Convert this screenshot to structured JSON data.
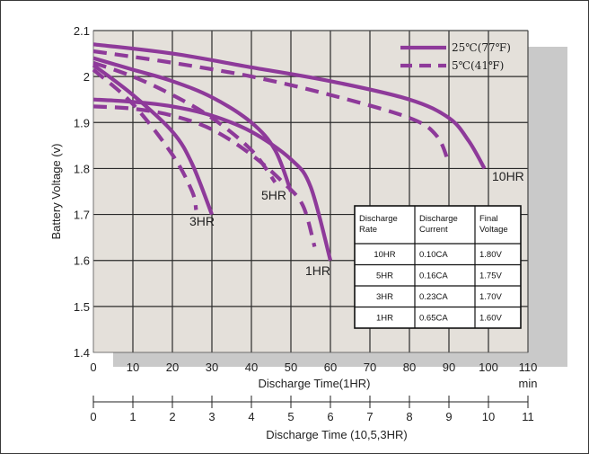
{
  "chart_data": {
    "type": "line",
    "ylabel": "Battery Voltage (v)",
    "ylim": [
      1.4,
      2.1
    ],
    "yticks": [
      "1.4",
      "1.5",
      "1.6",
      "1.7",
      "1.8",
      "1.9",
      "2",
      "2.1"
    ],
    "x_axis_1": {
      "label": "Discharge Time(1HR)",
      "unit": "min",
      "range": [
        0,
        110
      ],
      "ticks": [
        "0",
        "10",
        "20",
        "30",
        "40",
        "50",
        "60",
        "70",
        "80",
        "90",
        "100",
        "110"
      ]
    },
    "x_axis_2": {
      "label": "Discharge Time (10,5,3HR)",
      "range": [
        0,
        11
      ],
      "ticks": [
        "0",
        "1",
        "2",
        "3",
        "4",
        "5",
        "6",
        "7",
        "8",
        "9",
        "10",
        "11"
      ]
    },
    "legend": {
      "position": "top-right",
      "items": [
        {
          "label": "25℃(77℉)",
          "style": "solid"
        },
        {
          "label": "5℃(41℉)",
          "style": "dashed"
        }
      ]
    },
    "series": [
      {
        "name": "10HR",
        "temperature": "25℃(77℉)",
        "x_unit": "hours",
        "x": [
          0,
          2,
          4,
          6,
          8,
          9,
          9.5,
          9.9
        ],
        "y": [
          2.07,
          2.05,
          2.02,
          1.99,
          1.95,
          1.91,
          1.86,
          1.8
        ]
      },
      {
        "name": "10HR",
        "temperature": "5℃(41℉)",
        "x_unit": "hours",
        "x": [
          0,
          2,
          4,
          6,
          8,
          8.7,
          9.0
        ],
        "y": [
          2.055,
          2.03,
          2.0,
          1.96,
          1.91,
          1.87,
          1.81
        ]
      },
      {
        "name": "5HR",
        "temperature": "25℃(77℉)",
        "x_unit": "hours",
        "x": [
          0,
          1,
          2,
          3,
          4,
          4.6,
          5.0
        ],
        "y": [
          2.04,
          2.015,
          1.99,
          1.955,
          1.9,
          1.84,
          1.75
        ]
      },
      {
        "name": "5HR",
        "temperature": "5℃(41℉)",
        "x_unit": "hours",
        "x": [
          0,
          1,
          2,
          3,
          4,
          4.6
        ],
        "y": [
          2.03,
          2.0,
          1.96,
          1.91,
          1.84,
          1.77
        ]
      },
      {
        "name": "3HR",
        "temperature": "25℃(77℉)",
        "x_unit": "hours",
        "x": [
          0,
          1,
          2,
          2.5,
          3.0
        ],
        "y": [
          2.025,
          1.96,
          1.88,
          1.81,
          1.7
        ]
      },
      {
        "name": "3HR",
        "temperature": "5℃(41℉)",
        "x_unit": "hours",
        "x": [
          0,
          1,
          2,
          2.5,
          2.6
        ],
        "y": [
          2.015,
          1.94,
          1.83,
          1.75,
          1.71
        ]
      },
      {
        "name": "1HR",
        "temperature": "25℃(77℉)",
        "x_unit": "min",
        "x": [
          0,
          10,
          20,
          30,
          40,
          50,
          55,
          60
        ],
        "y": [
          1.95,
          1.945,
          1.935,
          1.915,
          1.88,
          1.82,
          1.76,
          1.6
        ]
      },
      {
        "name": "1HR",
        "temperature": "5℃(41℉)",
        "x_unit": "min",
        "x": [
          0,
          10,
          20,
          30,
          40,
          48,
          53,
          56
        ],
        "y": [
          1.935,
          1.93,
          1.915,
          1.885,
          1.83,
          1.77,
          1.72,
          1.63
        ]
      }
    ],
    "curve_labels": [
      "10HR",
      "5HR",
      "3HR",
      "1HR"
    ],
    "table": {
      "headers": [
        [
          "Discharge",
          "Rate"
        ],
        [
          "Discharge",
          "Current"
        ],
        [
          "Final",
          "Voltage"
        ]
      ],
      "rows": [
        [
          "10HR",
          "0.10CA",
          "1.80V"
        ],
        [
          "5HR",
          "0.16CA",
          "1.75V"
        ],
        [
          "3HR",
          "0.23CA",
          "1.70V"
        ],
        [
          "1HR",
          "0.65CA",
          "1.60V"
        ]
      ]
    },
    "grid": true,
    "colors": {
      "curve": "#8e3a9a",
      "plot_bg": "#e4e0da",
      "shadow": "#c9c9c9",
      "grid": "#2b2b2b"
    }
  }
}
